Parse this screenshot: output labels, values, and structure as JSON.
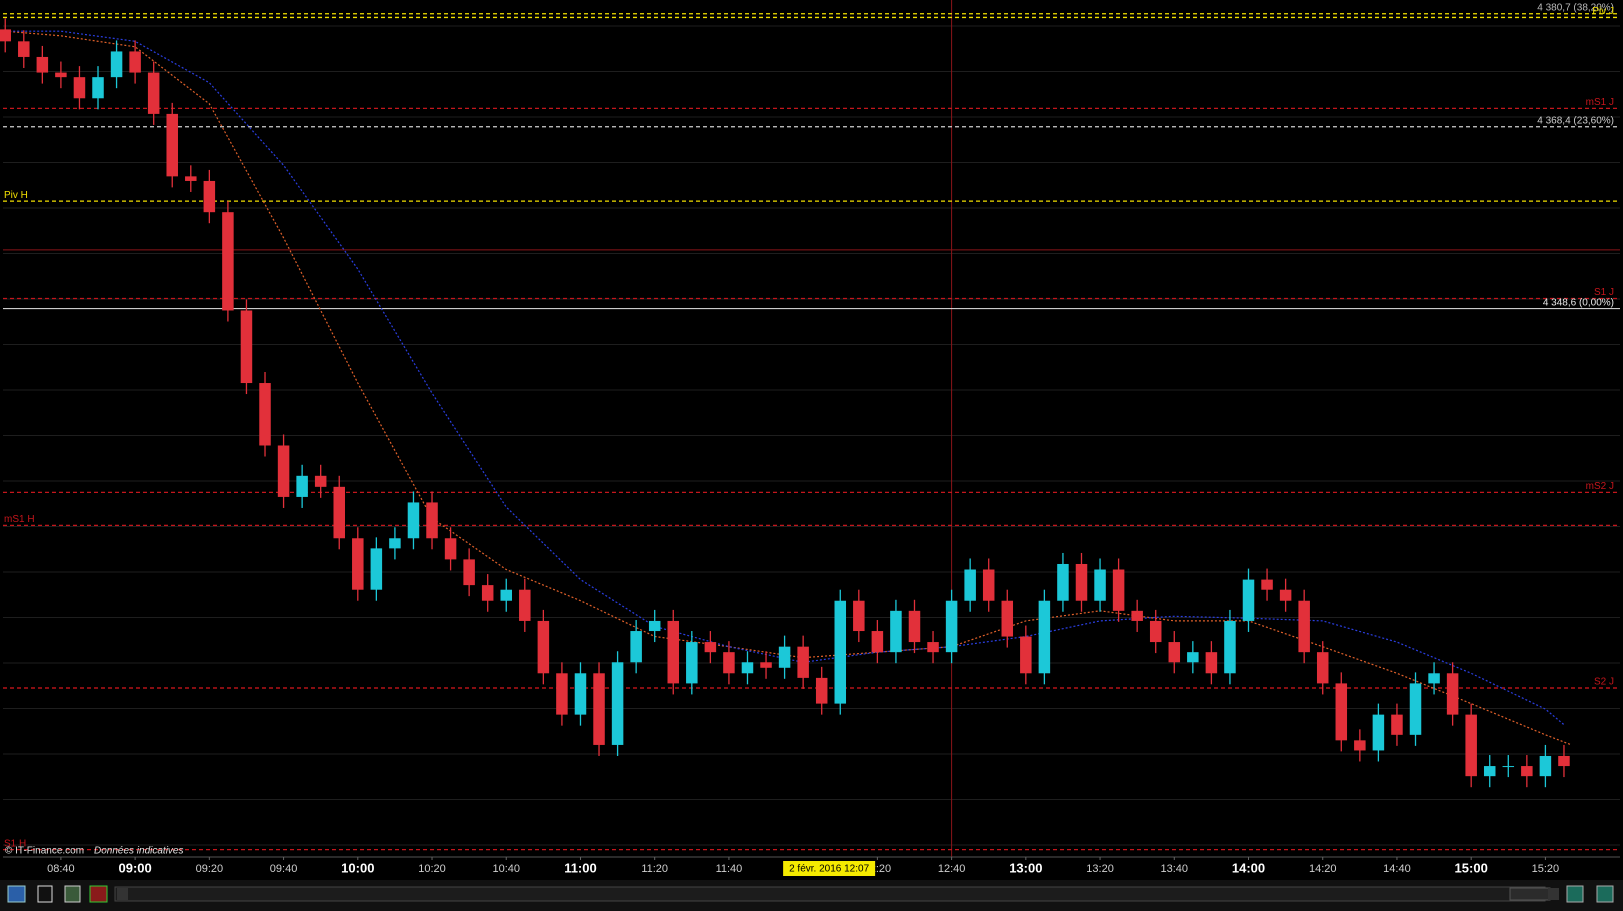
{
  "chart_data": {
    "type": "candlestick",
    "credit": "© IT-Finance.com",
    "credit_note": "Données indicatives",
    "up_color": "#1cc8d8",
    "down_color": "#e2303a",
    "xlim": [
      504.4,
      940.1
    ],
    "ylim": [
      4288.9,
      4382.2
    ],
    "xticks": [
      {
        "value": 520,
        "label": "08:40"
      },
      {
        "value": 540,
        "label": "09:00"
      },
      {
        "value": 560,
        "label": "09:20"
      },
      {
        "value": 580,
        "label": "09:40"
      },
      {
        "value": 600,
        "label": "10:00"
      },
      {
        "value": 620,
        "label": "10:20"
      },
      {
        "value": 640,
        "label": "10:40"
      },
      {
        "value": 660,
        "label": "11:00"
      },
      {
        "value": 680,
        "label": "11:20"
      },
      {
        "value": 700,
        "label": "11:40"
      },
      {
        "value": 740,
        "label": "12:20"
      },
      {
        "value": 760,
        "label": "12:40"
      },
      {
        "value": 780,
        "label": "13:00"
      },
      {
        "value": 800,
        "label": "13:20"
      },
      {
        "value": 820,
        "label": "13:40"
      },
      {
        "value": 840,
        "label": "14:00"
      },
      {
        "value": 860,
        "label": "14:20"
      },
      {
        "value": 880,
        "label": "14:40"
      },
      {
        "value": 900,
        "label": "15:00"
      },
      {
        "value": 920,
        "label": "15:20"
      }
    ],
    "cursor": {
      "value": 727,
      "label": "2 févr. 2016 12:07"
    },
    "vline": 760,
    "x": [
      505,
      510,
      515,
      520,
      525,
      530,
      535,
      540,
      545,
      550,
      555,
      560,
      565,
      570,
      575,
      580,
      585,
      590,
      595,
      600,
      605,
      610,
      615,
      620,
      625,
      630,
      635,
      640,
      645,
      650,
      655,
      660,
      665,
      670,
      675,
      680,
      685,
      690,
      695,
      700,
      705,
      710,
      715,
      720,
      725,
      730,
      735,
      740,
      745,
      750,
      755,
      760,
      765,
      770,
      775,
      780,
      785,
      790,
      795,
      800,
      805,
      810,
      815,
      820,
      825,
      830,
      835,
      840,
      845,
      850,
      855,
      860,
      865,
      870,
      875,
      880,
      885,
      890,
      895,
      900,
      905,
      910,
      915,
      920,
      925
    ],
    "open": [
      4379.0,
      4377.7,
      4376.0,
      4374.3,
      4373.8,
      4371.5,
      4373.8,
      4376.6,
      4374.3,
      4369.8,
      4363.0,
      4362.5,
      4359.1,
      4348.4,
      4340.5,
      4333.7,
      4328.1,
      4330.4,
      4329.2,
      4323.6,
      4318.0,
      4322.5,
      4323.6,
      4327.5,
      4323.6,
      4321.3,
      4318.5,
      4316.8,
      4318.0,
      4314.6,
      4308.9,
      4304.4,
      4308.9,
      4301.1,
      4310.1,
      4313.5,
      4314.6,
      4307.8,
      4312.3,
      4311.2,
      4308.9,
      4310.1,
      4309.5,
      4311.8,
      4308.4,
      4305.6,
      4316.8,
      4313.5,
      4311.2,
      4315.7,
      4312.3,
      4311.2,
      4316.8,
      4320.2,
      4316.8,
      4312.9,
      4308.9,
      4316.8,
      4320.8,
      4316.8,
      4320.2,
      4315.7,
      4314.6,
      4312.3,
      4310.1,
      4311.2,
      4308.9,
      4314.6,
      4319.1,
      4318.0,
      4316.8,
      4311.2,
      4307.8,
      4301.6,
      4300.5,
      4304.4,
      4302.2,
      4307.8,
      4308.9,
      4304.4,
      4297.7,
      4298.8,
      4298.8,
      4297.7,
      4299.9
    ],
    "high": [
      4380.2,
      4378.9,
      4377.2,
      4375.5,
      4375.0,
      4375.0,
      4377.8,
      4377.8,
      4375.5,
      4371.0,
      4364.2,
      4363.7,
      4360.3,
      4349.6,
      4341.7,
      4334.9,
      4331.6,
      4331.6,
      4330.4,
      4324.8,
      4323.7,
      4324.8,
      4328.7,
      4328.7,
      4324.8,
      4322.5,
      4319.7,
      4319.2,
      4319.2,
      4315.8,
      4310.1,
      4310.1,
      4310.1,
      4311.3,
      4314.7,
      4315.8,
      4315.8,
      4313.5,
      4313.5,
      4312.4,
      4311.3,
      4311.3,
      4313.0,
      4313.0,
      4309.6,
      4318.0,
      4318.0,
      4314.7,
      4316.9,
      4316.9,
      4313.5,
      4318.0,
      4321.4,
      4321.4,
      4318.0,
      4314.1,
      4318.0,
      4322.0,
      4322.0,
      4321.4,
      4321.4,
      4316.9,
      4315.8,
      4313.5,
      4312.4,
      4312.4,
      4315.8,
      4320.3,
      4320.3,
      4319.2,
      4318.0,
      4312.4,
      4309.0,
      4302.8,
      4305.6,
      4305.6,
      4309.0,
      4310.1,
      4310.1,
      4305.6,
      4300.0,
      4300.0,
      4300.0,
      4301.1,
      4301.1
    ],
    "low": [
      4376.5,
      4374.8,
      4373.1,
      4372.6,
      4370.3,
      4370.3,
      4372.6,
      4373.1,
      4368.6,
      4361.8,
      4361.3,
      4357.9,
      4347.2,
      4339.3,
      4332.5,
      4326.9,
      4326.9,
      4328.0,
      4322.4,
      4316.8,
      4316.8,
      4321.3,
      4322.4,
      4322.4,
      4320.1,
      4317.3,
      4315.6,
      4315.6,
      4313.4,
      4307.7,
      4303.2,
      4303.2,
      4299.9,
      4299.9,
      4308.9,
      4312.3,
      4306.6,
      4306.6,
      4310.0,
      4307.7,
      4307.7,
      4308.3,
      4308.3,
      4307.2,
      4304.4,
      4304.4,
      4312.3,
      4310.0,
      4310.0,
      4311.1,
      4310.0,
      4310.0,
      4315.6,
      4315.6,
      4311.7,
      4307.7,
      4307.7,
      4315.6,
      4315.6,
      4315.6,
      4314.5,
      4313.4,
      4311.1,
      4308.9,
      4308.9,
      4307.7,
      4307.7,
      4313.4,
      4316.8,
      4315.6,
      4310.0,
      4306.6,
      4300.4,
      4299.3,
      4299.3,
      4301.0,
      4301.0,
      4306.6,
      4303.2,
      4296.5,
      4296.5,
      4297.6,
      4296.5,
      4296.5,
      4297.6
    ],
    "close": [
      4377.7,
      4376.0,
      4374.3,
      4373.8,
      4371.5,
      4373.8,
      4376.6,
      4374.3,
      4369.8,
      4363.0,
      4362.5,
      4359.1,
      4348.4,
      4340.5,
      4333.7,
      4328.1,
      4330.4,
      4329.2,
      4323.6,
      4318.0,
      4322.5,
      4323.6,
      4327.5,
      4323.6,
      4321.3,
      4318.5,
      4316.8,
      4318.0,
      4314.6,
      4308.9,
      4304.4,
      4308.9,
      4301.1,
      4310.1,
      4313.5,
      4314.6,
      4307.8,
      4312.3,
      4311.2,
      4308.9,
      4310.1,
      4309.5,
      4311.8,
      4308.4,
      4305.6,
      4316.8,
      4313.5,
      4311.2,
      4315.7,
      4312.3,
      4311.2,
      4316.8,
      4320.2,
      4316.8,
      4312.9,
      4308.9,
      4316.8,
      4320.8,
      4316.8,
      4320.2,
      4315.7,
      4314.6,
      4312.3,
      4310.1,
      4311.2,
      4308.9,
      4314.6,
      4319.1,
      4318.0,
      4316.8,
      4311.2,
      4307.8,
      4301.6,
      4300.5,
      4304.4,
      4302.2,
      4307.8,
      4308.9,
      4304.4,
      4297.7,
      4298.8,
      4298.8,
      4297.7,
      4299.9,
      4298.8
    ],
    "lines": [
      {
        "color": "#e0602a",
        "x": [
          505,
          520,
          540,
          560,
          580,
          600,
          620,
          640,
          660,
          680,
          700,
          720,
          740,
          760,
          780,
          800,
          820,
          840,
          860,
          880,
          900,
          920,
          927
        ],
        "values": [
          4378.8,
          4378.3,
          4377.1,
          4370.9,
          4356.3,
          4340.5,
          4325.8,
          4320.2,
          4316.8,
          4312.9,
          4311.8,
          4310.6,
          4311.2,
          4311.8,
          4314.6,
          4315.7,
          4314.6,
          4314.6,
          4311.8,
          4308.9,
          4305.6,
          4302.2,
          4301.1
        ]
      },
      {
        "color": "#2a3ee0",
        "x": [
          505,
          520,
          540,
          560,
          580,
          600,
          620,
          640,
          660,
          680,
          700,
          720,
          740,
          760,
          780,
          800,
          820,
          840,
          860,
          880,
          900,
          920,
          925
        ],
        "values": [
          4378.8,
          4378.8,
          4377.7,
          4373.2,
          4364.2,
          4352.9,
          4339.4,
          4327.0,
          4319.1,
          4314.0,
          4311.8,
          4310.1,
          4311.2,
          4311.8,
          4312.9,
          4314.6,
          4315.1,
          4314.9,
          4314.6,
          4312.3,
          4308.9,
          4305.0,
          4303.3
        ]
      }
    ],
    "levels": [
      {
        "label": "4 380,7 (38,20%)",
        "value": 4380.7,
        "color": "#f2e000",
        "label_color": "#bbbbbb",
        "dash": true,
        "side": "right"
      },
      {
        "label": "Piv J",
        "value": 4380.3,
        "color": "#f2e000",
        "label_color": "#f2e000",
        "dash": true,
        "side": "right"
      },
      {
        "label": "mS1 J",
        "value": 4370.4,
        "color": "#c4161c",
        "label_color": "#c4161c",
        "dash": true,
        "side": "right"
      },
      {
        "label": "4 368,4 (23,60%)",
        "value": 4368.4,
        "color": "#cfcfcf",
        "label_color": "#cfcfcf",
        "dash": true,
        "side": "right"
      },
      {
        "label": "Piv H",
        "value": 4360.3,
        "color": "#f2e000",
        "label_color": "#f2e000",
        "dash": true,
        "side": "left"
      },
      {
        "value": 4355.0,
        "color": "#8a1418",
        "dash": false
      },
      {
        "label": "S1 J",
        "value": 4349.7,
        "color": "#c4161c",
        "label_color": "#c4161c",
        "dash": true,
        "side": "right"
      },
      {
        "label": "4 348,6 (0,00%)",
        "value": 4348.6,
        "color": "#e8e8e8",
        "label_color": "#e8e8e8",
        "dash": false,
        "side": "right"
      },
      {
        "label": "mS2 J",
        "value": 4328.6,
        "color": "#c4161c",
        "label_color": "#c4161c",
        "dash": true,
        "side": "right"
      },
      {
        "label": "mS1 H",
        "value": 4325.0,
        "color": "#c4161c",
        "label_color": "#c4161c",
        "dash": true,
        "side": "left"
      },
      {
        "label": "S2 J",
        "value": 4307.3,
        "color": "#d8161c",
        "label_color": "#c4161c",
        "dash": true,
        "side": "right"
      },
      {
        "label": "S1 H",
        "value": 4289.7,
        "color": "#c4161c",
        "label_color": "#c4161c",
        "dash": true,
        "side": "left"
      }
    ]
  }
}
